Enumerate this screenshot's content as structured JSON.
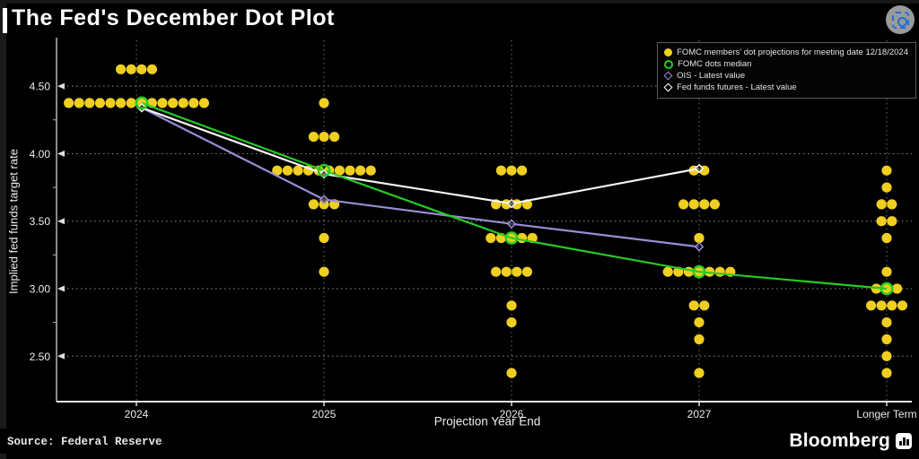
{
  "header": {
    "title": "The Fed's December Dot Plot"
  },
  "legend": {
    "items": [
      {
        "label": "FOMC members' dot projections for meeting date 12/18/2024",
        "marker": "filled-circle",
        "color": "#EFCF1F"
      },
      {
        "label": "FOMC dots median",
        "marker": "open-circle",
        "color": "#24CC24"
      },
      {
        "label": "OIS - Latest value",
        "marker": "open-diamond",
        "color": "#9D8BD6"
      },
      {
        "label": "Fed funds futures - Latest value",
        "marker": "open-diamond",
        "color": "#FFFFFF"
      }
    ]
  },
  "chart_data": {
    "type": "scatter",
    "title": "The Fed's December Dot Plot",
    "xlabel": "Projection Year End",
    "ylabel": "Implied fed funds target rate",
    "x_categories": [
      "2024",
      "2025",
      "2026",
      "2027",
      "Longer Term"
    ],
    "y_ticks": [
      "4.50",
      "4.00",
      "3.50",
      "3.00",
      "2.50"
    ],
    "y_minor_ticks": [
      2.75,
      3.25,
      3.75,
      4.25
    ],
    "ylim": [
      2.3,
      4.84
    ],
    "grid": true,
    "legend_position": "top-right",
    "colors": {
      "dots": "#EFCF1F",
      "median": "#24CC24",
      "ois": "#9D8BD6",
      "futures": "#F5F5F5"
    },
    "dots": [
      {
        "year": "2024",
        "rate": 4.625,
        "count": 4
      },
      {
        "year": "2024",
        "rate": 4.375,
        "count": 14
      },
      {
        "year": "2025",
        "rate": 4.375,
        "count": 1
      },
      {
        "year": "2025",
        "rate": 4.125,
        "count": 3
      },
      {
        "year": "2025",
        "rate": 3.875,
        "count": 10
      },
      {
        "year": "2025",
        "rate": 3.625,
        "count": 3
      },
      {
        "year": "2025",
        "rate": 3.375,
        "count": 1
      },
      {
        "year": "2025",
        "rate": 3.125,
        "count": 1
      },
      {
        "year": "2026",
        "rate": 3.875,
        "count": 3
      },
      {
        "year": "2026",
        "rate": 3.625,
        "count": 4
      },
      {
        "year": "2026",
        "rate": 3.375,
        "count": 5
      },
      {
        "year": "2026",
        "rate": 3.125,
        "count": 4
      },
      {
        "year": "2026",
        "rate": 2.875,
        "count": 1
      },
      {
        "year": "2026",
        "rate": 2.75,
        "count": 1
      },
      {
        "year": "2026",
        "rate": 2.375,
        "count": 1
      },
      {
        "year": "2027",
        "rate": 3.875,
        "count": 2
      },
      {
        "year": "2027",
        "rate": 3.625,
        "count": 4
      },
      {
        "year": "2027",
        "rate": 3.375,
        "count": 1
      },
      {
        "year": "2027",
        "rate": 3.125,
        "count": 7
      },
      {
        "year": "2027",
        "rate": 2.875,
        "count": 2
      },
      {
        "year": "2027",
        "rate": 2.75,
        "count": 1
      },
      {
        "year": "2027",
        "rate": 2.625,
        "count": 1
      },
      {
        "year": "2027",
        "rate": 2.375,
        "count": 1
      },
      {
        "year": "Longer Term",
        "rate": 3.875,
        "count": 1
      },
      {
        "year": "Longer Term",
        "rate": 3.75,
        "count": 1
      },
      {
        "year": "Longer Term",
        "rate": 3.625,
        "count": 2
      },
      {
        "year": "Longer Term",
        "rate": 3.5,
        "count": 2
      },
      {
        "year": "Longer Term",
        "rate": 3.375,
        "count": 1
      },
      {
        "year": "Longer Term",
        "rate": 3.125,
        "count": 1
      },
      {
        "year": "Longer Term",
        "rate": 3.0,
        "count": 3
      },
      {
        "year": "Longer Term",
        "rate": 2.875,
        "count": 4
      },
      {
        "year": "Longer Term",
        "rate": 2.75,
        "count": 1
      },
      {
        "year": "Longer Term",
        "rate": 2.625,
        "count": 1
      },
      {
        "year": "Longer Term",
        "rate": 2.5,
        "count": 1
      },
      {
        "year": "Longer Term",
        "rate": 2.375,
        "count": 1
      }
    ],
    "series": [
      {
        "id": "ois",
        "name": "OIS - Latest value",
        "color": "#9D8BD6",
        "marker": "open-diamond",
        "x": [
          "2024",
          "2025",
          "2026",
          "2027"
        ],
        "values": [
          4.34,
          3.66,
          3.48,
          3.31
        ]
      },
      {
        "id": "futures",
        "name": "Fed funds futures - Latest value",
        "color": "#F5F5F5",
        "marker": "open-diamond",
        "x": [
          "2024",
          "2025",
          "2026",
          "2027"
        ],
        "values": [
          4.34,
          3.85,
          3.63,
          3.89
        ]
      },
      {
        "id": "median",
        "name": "FOMC dots median",
        "color": "#24CC24",
        "marker": "open-circle",
        "x": [
          "2024",
          "2025",
          "2026",
          "2027",
          "Longer Term"
        ],
        "values": [
          4.375,
          3.875,
          3.375,
          3.125,
          3.0
        ]
      }
    ]
  },
  "footer": {
    "source": "Source: Federal Reserve",
    "brand": "Bloomberg"
  }
}
